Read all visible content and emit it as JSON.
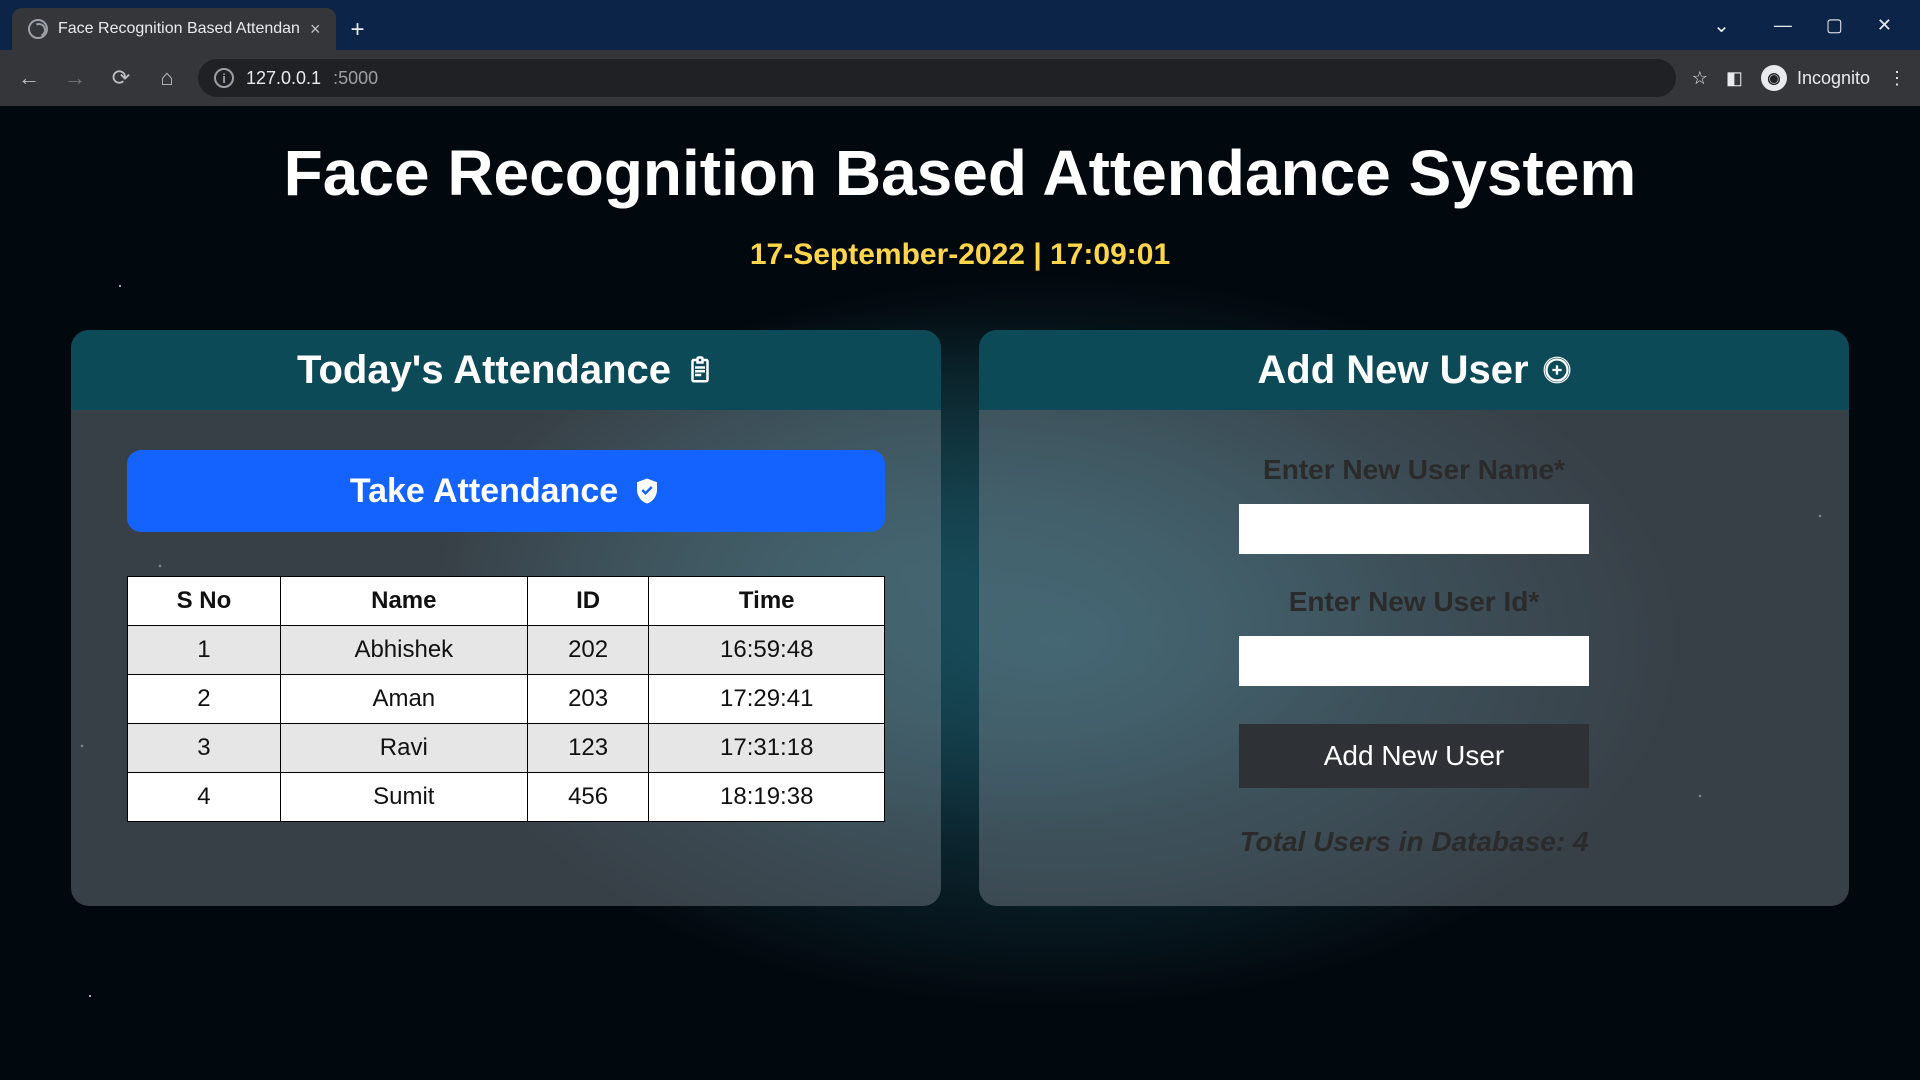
{
  "browser": {
    "tab_title": "Face Recognition Based Attendan",
    "url_host": "127.0.0.1",
    "url_path": ":5000",
    "incognito_label": "Incognito"
  },
  "page": {
    "title": "Face Recognition Based Attendance System",
    "datetime": "17-September-2022 | 17:09:01"
  },
  "attendance_panel": {
    "header": "Today's Attendance",
    "take_button": "Take Attendance",
    "table": {
      "columns": [
        "S No",
        "Name",
        "ID",
        "Time"
      ],
      "rows": [
        [
          "1",
          "Abhishek",
          "202",
          "16:59:48"
        ],
        [
          "2",
          "Aman",
          "203",
          "17:29:41"
        ],
        [
          "3",
          "Ravi",
          "123",
          "17:31:18"
        ],
        [
          "4",
          "Sumit",
          "456",
          "18:19:38"
        ]
      ]
    }
  },
  "add_user_panel": {
    "header": "Add New User",
    "name_label": "Enter New User Name*",
    "id_label": "Enter New User Id*",
    "submit_label": "Add New User",
    "total_users_text": "Total Users in Database: 4"
  },
  "colors": {
    "panel_header_bg": "#0d4a58",
    "take_button_bg": "#1463ff",
    "datetime_color": "#ffd54a",
    "add_button_bg": "#2e3136",
    "table_stripe": "#e6e6e6"
  }
}
